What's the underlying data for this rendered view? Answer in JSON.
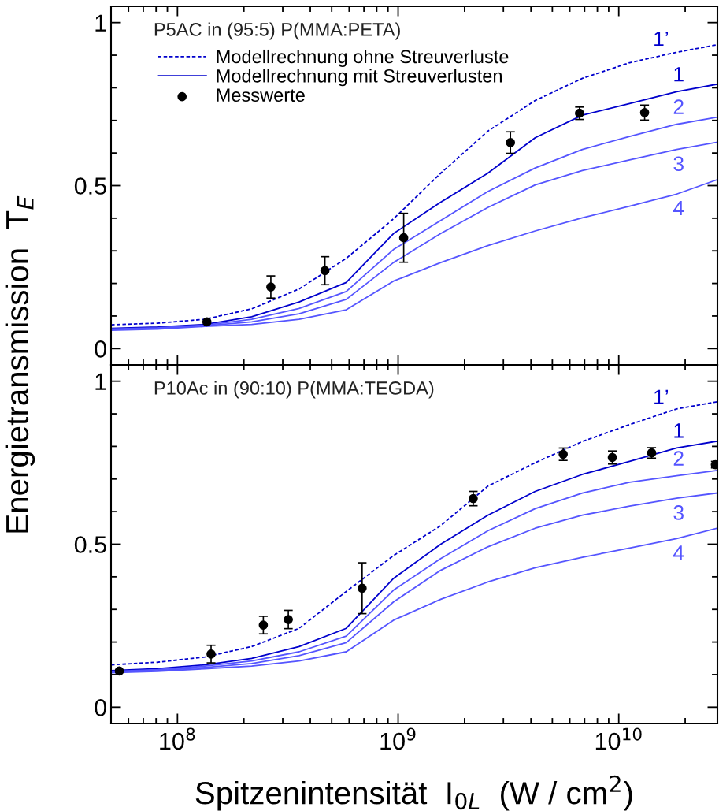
{
  "chart_data": [
    {
      "type": "line",
      "title": "P5AC in (95:5) P(MMA:PETA)",
      "ylabel": "Energietransmission  T$_{E}$",
      "log": "x",
      "legend": "top left",
      "tick_labels": "y",
      "grid": false,
      "xlim": [
        50000000.0,
        28000000000.0
      ],
      "xticks": [
        100000000.0,
        1000000000.0,
        10000000000.0
      ],
      "ylim": [
        -0.05,
        1.05
      ],
      "yticks": [
        0,
        0.5,
        1
      ],
      "x": [
        50000000.0,
        81000000.0,
        133000000.0,
        217000000.0,
        356000000.0,
        582000000.0,
        953000000.0,
        1560000000.0,
        2550000000.0,
        4180000000.0,
        6840000000.0,
        11200000000.0,
        18300000000.0,
        27900000000.0
      ],
      "series": [
        {
          "name": "Modellrechnung ohne Streuverluste",
          "color": "#0000cc",
          "line_style": "dashed",
          "values": [
            0.073,
            0.078,
            0.09,
            0.122,
            0.183,
            0.277,
            0.398,
            0.538,
            0.667,
            0.761,
            0.829,
            0.877,
            0.909,
            0.932
          ]
        },
        {
          "name": "Modellrechnung mit Streuverlusten",
          "color": "#0000cc",
          "line_style": "solid",
          "values": [
            0.062,
            0.066,
            0.074,
            0.098,
            0.143,
            0.203,
            0.353,
            0.449,
            0.538,
            0.647,
            0.716,
            0.752,
            0.788,
            0.811
          ]
        },
        {
          "color": "#5555ff",
          "line_style": "solid",
          "values": [
            0.06,
            0.064,
            0.072,
            0.09,
            0.123,
            0.175,
            0.304,
            0.393,
            0.482,
            0.554,
            0.611,
            0.651,
            0.688,
            0.71
          ]
        },
        {
          "color": "#5555ff",
          "line_style": "solid",
          "values": [
            0.058,
            0.062,
            0.07,
            0.082,
            0.107,
            0.151,
            0.264,
            0.353,
            0.433,
            0.502,
            0.546,
            0.579,
            0.611,
            0.633
          ]
        },
        {
          "color": "#5555ff",
          "line_style": "solid",
          "values": [
            0.056,
            0.06,
            0.068,
            0.074,
            0.09,
            0.119,
            0.207,
            0.264,
            0.316,
            0.361,
            0.401,
            0.437,
            0.474,
            0.518
          ]
        },
        {
          "name": "Messwerte",
          "type": "scatter",
          "marker": "circle",
          "color": "#000000",
          "x": [
            136000000.0,
            265000000.0,
            466000000.0,
            1060000000.0,
            3230000000.0,
            6640000000.0,
            13100000000.0
          ],
          "values": [
            0.082,
            0.189,
            0.239,
            0.34,
            0.632,
            0.722,
            0.724
          ],
          "errors": [
            null,
            0.034,
            0.043,
            0.075,
            0.033,
            0.019,
            0.023
          ]
        }
      ],
      "annotations": [
        "1’",
        "1",
        "2",
        "3",
        "4"
      ]
    },
    {
      "type": "line",
      "title": "P10Ac in (90:10) P(MMA:TEGDA)",
      "xlabel": "Spitzenintensität  I$_{0L}$  (W / cm$^{2}$)",
      "log": "x",
      "grid": false,
      "xlim": [
        50000000.0,
        28000000000.0
      ],
      "xticks": [
        {
          "value": 100000000.0,
          "label": "10$^{8}$"
        },
        {
          "value": 1000000000.0,
          "label": "10$^{9}$"
        },
        {
          "value": 10000000000.0,
          "label": "10$^{10}$"
        }
      ],
      "ylim": [
        -0.05,
        1.05
      ],
      "yticks": [
        0,
        0.5,
        1
      ],
      "x": [
        50000000.0,
        81000000.0,
        133000000.0,
        217000000.0,
        356000000.0,
        582000000.0,
        953000000.0,
        1560000000.0,
        2550000000.0,
        4180000000.0,
        6840000000.0,
        11200000000.0,
        18300000000.0,
        27900000000.0
      ],
      "series": [
        {
          "color": "#0000cc",
          "line_style": "dashed",
          "values": [
            0.13,
            0.138,
            0.154,
            0.186,
            0.242,
            0.355,
            0.465,
            0.557,
            0.678,
            0.75,
            0.815,
            0.867,
            0.915,
            0.937
          ]
        },
        {
          "color": "#0000cc",
          "line_style": "solid",
          "values": [
            0.112,
            0.118,
            0.13,
            0.15,
            0.186,
            0.242,
            0.395,
            0.5,
            0.589,
            0.662,
            0.714,
            0.754,
            0.795,
            0.816
          ]
        },
        {
          "color": "#5555ff",
          "line_style": "solid",
          "values": [
            0.11,
            0.115,
            0.126,
            0.142,
            0.17,
            0.218,
            0.359,
            0.456,
            0.541,
            0.609,
            0.657,
            0.69,
            0.71,
            0.726
          ]
        },
        {
          "color": "#5555ff",
          "line_style": "solid",
          "values": [
            0.108,
            0.112,
            0.122,
            0.134,
            0.158,
            0.198,
            0.323,
            0.42,
            0.492,
            0.549,
            0.589,
            0.617,
            0.641,
            0.657
          ]
        },
        {
          "color": "#5555ff",
          "line_style": "solid",
          "values": [
            0.106,
            0.11,
            0.118,
            0.126,
            0.142,
            0.17,
            0.267,
            0.331,
            0.384,
            0.428,
            0.46,
            0.488,
            0.517,
            0.549
          ]
        },
        {
          "type": "scatter",
          "marker": "circle",
          "color": "#000000",
          "x": [
            54500000.0,
            142000000.0,
            245000000.0,
            318000000.0,
            687000000.0,
            2190000000.0,
            5600000000.0,
            9350000000.0,
            14100000000.0,
            27400000000.0
          ],
          "values": [
            0.111,
            0.163,
            0.252,
            0.269,
            0.365,
            0.64,
            0.776,
            0.766,
            0.78,
            0.744
          ],
          "errors": [
            null,
            0.027,
            0.027,
            0.028,
            0.078,
            0.022,
            0.019,
            0.02,
            0.016,
            0.01
          ]
        }
      ],
      "annotations": [
        "1’",
        "1",
        "2",
        "3",
        "4"
      ]
    }
  ]
}
